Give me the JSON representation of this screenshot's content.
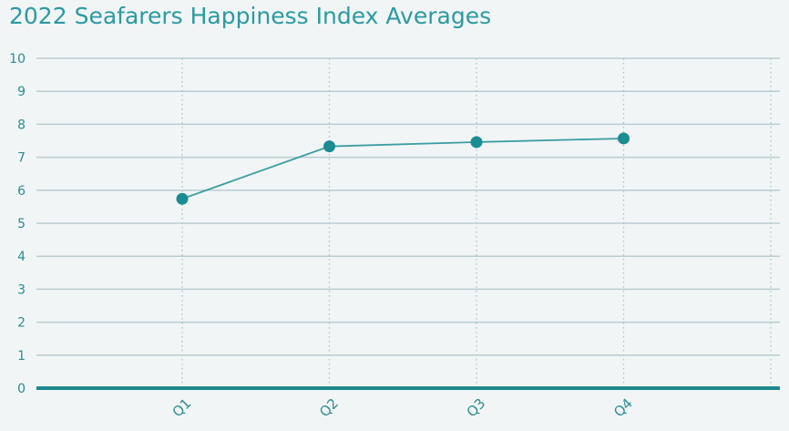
{
  "chart_data": {
    "type": "line",
    "title": "2022 Seafarers Happiness Index Averages",
    "xlabel": "",
    "ylabel": "",
    "categories": [
      "Q1",
      "Q2",
      "Q3",
      "Q4"
    ],
    "series": [
      {
        "values": [
          5.74,
          7.33,
          7.46,
          7.57
        ]
      }
    ],
    "ylim": [
      0,
      10
    ],
    "yticks": [
      "0",
      "1",
      "2",
      "3",
      "4",
      "5",
      "6",
      "7",
      "8",
      "9",
      "10"
    ],
    "grid": true,
    "legend": "none",
    "colors": {
      "line": "#3a9ea2",
      "marker": "#1a8c92",
      "axis": "#1e8a90",
      "grid": "#b9ccd2",
      "vgrid": "#9fc4c6",
      "tick_text": "#2a8c92"
    }
  }
}
